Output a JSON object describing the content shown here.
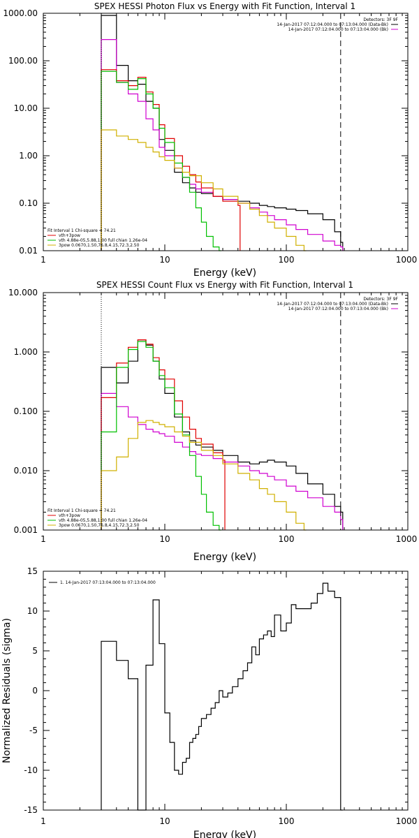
{
  "chart_data": [
    {
      "type": "line",
      "title": "SPEX HESSI Photon Flux vs Energy with Fit Function, Interval 1",
      "xlabel": "Energy (keV)",
      "ylabel": "",
      "xscale": "log",
      "yscale": "log",
      "xlim": [
        1,
        1000
      ],
      "ylim": [
        0.01,
        1000
      ],
      "xticks": [
        "1",
        "10",
        "100",
        "1000"
      ],
      "yticks": [
        "0.01",
        "0.10",
        "1.00",
        "10.00",
        "100.00",
        "1000.00"
      ],
      "legend_top": [
        "Detectors: 3F 9F",
        "14-Jan-2017 07:12:04.000 to 07:13:04.000 (Data-Bk)",
        "14-Jan-2017 07:12:04.000 to 07:13:04.000 (Bk)"
      ],
      "legend_bottom": [
        "Fit Interval 1   Chi-square = 74.21",
        "vth+3pow",
        "vth 4.88e-05,5.88,1.00  full chian 1.26e-04",
        "3pow 0.0670,1.50,76.8,4.15,72.3,2.50"
      ],
      "vlines": [
        {
          "x": 3.0,
          "style": "dotted"
        },
        {
          "x": 280,
          "style": "dashed"
        }
      ],
      "series": [
        {
          "name": "14-Jan-2017 07:12:04.000 to 07:13:04.000 (Data-Bk)",
          "color": "#000000",
          "x": [
            3,
            4,
            5,
            6,
            7,
            8,
            9,
            10,
            12,
            14,
            16,
            18,
            20,
            25,
            30,
            40,
            50,
            60,
            70,
            80,
            100,
            120,
            150,
            200,
            250,
            280
          ],
          "y": [
            900,
            80,
            38,
            32,
            14,
            10,
            2.2,
            1.3,
            0.45,
            0.27,
            0.21,
            0.17,
            0.16,
            0.14,
            0.12,
            0.11,
            0.1,
            0.09,
            0.085,
            0.08,
            0.075,
            0.07,
            0.06,
            0.045,
            0.025,
            0.015
          ]
        },
        {
          "name": "14-Jan-2017 07:12:04.000 to 07:13:04.000 (Bk)",
          "color": "#d000d0",
          "x": [
            3,
            4,
            5,
            6,
            7,
            8,
            9,
            10,
            12,
            14,
            16,
            18,
            20,
            25,
            30,
            40,
            50,
            60,
            70,
            80,
            100,
            120,
            150,
            200,
            250,
            280
          ],
          "y": [
            280,
            35,
            20,
            14,
            6,
            3.5,
            1.5,
            1.0,
            0.55,
            0.35,
            0.25,
            0.2,
            0.17,
            0.14,
            0.12,
            0.1,
            0.08,
            0.065,
            0.055,
            0.045,
            0.035,
            0.028,
            0.022,
            0.016,
            0.013,
            0.012
          ]
        },
        {
          "name": "vth+3pow",
          "color": "#e00000",
          "x": [
            3,
            4,
            5,
            6,
            7,
            8,
            9,
            10,
            12,
            14,
            16,
            18,
            20,
            25,
            30,
            40
          ],
          "y": [
            65,
            38,
            30,
            45,
            22,
            12,
            4.5,
            2.3,
            1.0,
            0.6,
            0.4,
            0.28,
            0.21,
            0.14,
            0.11,
            0.09
          ]
        },
        {
          "name": "vth 4.88e-05,5.88,1.00  full chian 1.26e-04",
          "color": "#00c000",
          "x": [
            3,
            4,
            5,
            6,
            7,
            8,
            9,
            10,
            12,
            14,
            16,
            18,
            20,
            22,
            25,
            28
          ],
          "y": [
            60,
            35,
            25,
            42,
            20,
            10,
            3.8,
            1.9,
            0.7,
            0.35,
            0.17,
            0.08,
            0.04,
            0.02,
            0.012,
            0.01
          ]
        },
        {
          "name": "3pow 0.0670,1.50,76.8,4.15,72.3,2.50",
          "color": "#d0b000",
          "x": [
            3,
            4,
            5,
            6,
            7,
            8,
            9,
            10,
            12,
            14,
            16,
            20,
            25,
            30,
            40,
            50,
            60,
            70,
            80,
            100,
            120,
            140
          ],
          "y": [
            3.5,
            2.6,
            2.2,
            1.9,
            1.5,
            1.2,
            0.95,
            0.8,
            0.55,
            0.45,
            0.38,
            0.27,
            0.2,
            0.14,
            0.1,
            0.075,
            0.055,
            0.04,
            0.03,
            0.02,
            0.013,
            0.01
          ]
        }
      ]
    },
    {
      "type": "line",
      "title": "SPEX HESSI Count Flux vs Energy with Fit Function, Interval 1",
      "xlabel": "Energy (keV)",
      "ylabel": "",
      "xscale": "log",
      "yscale": "log",
      "xlim": [
        1,
        1000
      ],
      "ylim": [
        0.001,
        10
      ],
      "xticks": [
        "1",
        "10",
        "100",
        "1000"
      ],
      "yticks": [
        "0.001",
        "0.010",
        "0.100",
        "1.000",
        "10.000"
      ],
      "legend_top": [
        "Detectors: 3F 9F",
        "14-Jan-2017 07:12:04.000 to 07:13:04.000 (Data-Bk)",
        "14-Jan-2017 07:12:04.000 to 07:13:04.000 (Bk)"
      ],
      "legend_bottom": [
        "Fit Interval 1   Chi-square = 74.21",
        "vth+3pow",
        "vth 4.88e-05,5.88,1.00  full chian 1.26e-04",
        "3pow 0.0670,1.50,76.8,4.15,72.3,2.50"
      ],
      "vlines": [
        {
          "x": 3.0,
          "style": "dotted"
        },
        {
          "x": 280,
          "style": "dashed"
        }
      ],
      "series": [
        {
          "name": "14-Jan-2017 07:12:04.000 to 07:13:04.000 (Data-Bk)",
          "color": "#000000",
          "x": [
            3,
            4,
            5,
            6,
            7,
            8,
            9,
            10,
            12,
            14,
            16,
            18,
            20,
            25,
            30,
            40,
            50,
            60,
            70,
            80,
            100,
            120,
            150,
            200,
            250,
            280
          ],
          "y": [
            0.55,
            0.3,
            0.7,
            1.6,
            1.3,
            0.7,
            0.35,
            0.2,
            0.08,
            0.045,
            0.032,
            0.027,
            0.025,
            0.022,
            0.018,
            0.014,
            0.013,
            0.014,
            0.015,
            0.014,
            0.012,
            0.009,
            0.006,
            0.004,
            0.0025,
            0.002
          ]
        },
        {
          "name": "14-Jan-2017 07:12:04.000 to 07:13:04.000 (Bk)",
          "color": "#d000d0",
          "x": [
            3,
            4,
            5,
            6,
            7,
            8,
            9,
            10,
            12,
            14,
            16,
            18,
            20,
            25,
            30,
            40,
            50,
            60,
            70,
            80,
            100,
            120,
            150,
            200,
            250,
            280
          ],
          "y": [
            0.2,
            0.12,
            0.08,
            0.06,
            0.05,
            0.045,
            0.042,
            0.038,
            0.03,
            0.025,
            0.021,
            0.019,
            0.018,
            0.016,
            0.014,
            0.012,
            0.01,
            0.009,
            0.008,
            0.007,
            0.0055,
            0.0045,
            0.0035,
            0.0025,
            0.002,
            0.0015
          ]
        },
        {
          "name": "vth+3pow",
          "color": "#e00000",
          "x": [
            3,
            4,
            5,
            6,
            7,
            8,
            9,
            10,
            12,
            14,
            16,
            18,
            20,
            25,
            30
          ],
          "y": [
            0.17,
            0.65,
            1.2,
            1.6,
            1.35,
            0.8,
            0.5,
            0.35,
            0.15,
            0.08,
            0.05,
            0.035,
            0.028,
            0.02,
            0.015
          ]
        },
        {
          "name": "vth 4.88e-05,5.88,1.00  full chian 1.26e-04",
          "color": "#00c000",
          "x": [
            3,
            4,
            5,
            6,
            7,
            8,
            9,
            10,
            12,
            14,
            16,
            18,
            20,
            22,
            25,
            28
          ],
          "y": [
            0.045,
            0.55,
            1.1,
            1.5,
            1.2,
            0.7,
            0.4,
            0.25,
            0.09,
            0.04,
            0.018,
            0.008,
            0.004,
            0.002,
            0.0012,
            0.001
          ]
        },
        {
          "name": "3pow 0.0670,1.50,76.8,4.15,72.3,2.50",
          "color": "#d0b000",
          "x": [
            3,
            4,
            5,
            6,
            7,
            8,
            9,
            10,
            12,
            14,
            16,
            20,
            25,
            30,
            40,
            50,
            60,
            70,
            80,
            100,
            120,
            140
          ],
          "y": [
            0.01,
            0.017,
            0.035,
            0.065,
            0.07,
            0.065,
            0.06,
            0.055,
            0.045,
            0.038,
            0.03,
            0.022,
            0.018,
            0.013,
            0.009,
            0.007,
            0.005,
            0.004,
            0.003,
            0.002,
            0.0013,
            0.001
          ]
        }
      ]
    },
    {
      "type": "line",
      "title": "",
      "xlabel": "Energy (keV)",
      "ylabel": "Normalized Residuals (sigma)",
      "xscale": "log",
      "yscale": "linear",
      "xlim": [
        1,
        1000
      ],
      "ylim": [
        -15,
        15
      ],
      "xticks": [
        "1",
        "10",
        "100",
        "1000"
      ],
      "yticks": [
        "-15",
        "-10",
        "-5",
        "0",
        "5",
        "10",
        "15"
      ],
      "legend_top": [
        "1. 14-Jan-2017 07:13:04.000 to 07:13:04.000"
      ],
      "series": [
        {
          "name": "1. 14-Jan-2017 07:13:04.000 to 07:13:04.000",
          "color": "#000000",
          "x": [
            3,
            4,
            5,
            6,
            7,
            8,
            9,
            10,
            11,
            12,
            13,
            14,
            15,
            16,
            17,
            18,
            19,
            20,
            22,
            24,
            26,
            28,
            30,
            33,
            36,
            40,
            44,
            48,
            52,
            56,
            60,
            65,
            70,
            75,
            80,
            90,
            100,
            110,
            120,
            140,
            160,
            180,
            200,
            220,
            250,
            280
          ],
          "y": [
            6.2,
            3.8,
            1.5,
            -15.2,
            3.2,
            11.4,
            5.9,
            -2.8,
            -6.5,
            -10,
            -10.5,
            -9,
            -8.5,
            -6.5,
            -6,
            -5.5,
            -4.5,
            -3.5,
            -3,
            -2.2,
            -1.5,
            0,
            -0.8,
            -0.3,
            0.5,
            1.5,
            2.5,
            3.5,
            5.5,
            4.5,
            6.5,
            7,
            7.5,
            6.8,
            9.5,
            7.5,
            8.5,
            10.8,
            10.3,
            10.3,
            11,
            12.2,
            13.5,
            12.5,
            11.7,
            -15
          ]
        }
      ]
    }
  ]
}
